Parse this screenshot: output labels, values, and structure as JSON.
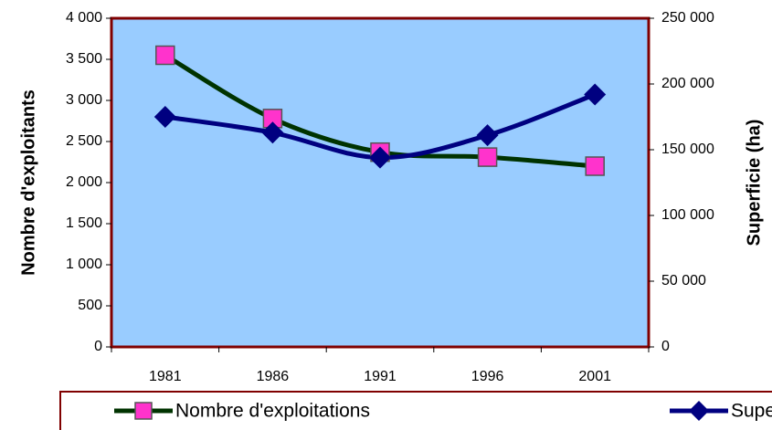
{
  "chart_data": {
    "type": "line",
    "categories": [
      "1981",
      "1986",
      "1991",
      "1996",
      "2001"
    ],
    "y_label": "Nombre d'exploitants",
    "y2_label": "Superficie (ha)",
    "series": [
      {
        "name": "Nombre d'exploitations",
        "color": "#003300",
        "marker": "square",
        "marker_color": "#ff33cc",
        "values": [
          3550,
          2780,
          2370,
          2310,
          2200
        ]
      },
      {
        "name": "Superficie",
        "color": "#000080",
        "marker": "diamond",
        "marker_color": "#000080",
        "axis": "y2",
        "values": [
          175000,
          163000,
          144000,
          161000,
          192000
        ]
      }
    ],
    "ylim": [
      0,
      4000
    ],
    "yticks": [
      0,
      500,
      {
        "value": 1000,
        "label": "1 000"
      },
      {
        "value": 1500,
        "label": "1 500"
      },
      {
        "value": 2000,
        "label": "2 000"
      },
      {
        "value": 2500,
        "label": "2 500"
      },
      {
        "value": 3000,
        "label": "3 000"
      },
      {
        "value": 3500,
        "label": "3 500"
      },
      {
        "value": 4000,
        "label": "4 000"
      }
    ],
    "y2lim": [
      0,
      250000
    ],
    "y2ticks": [
      0,
      {
        "value": 50000,
        "label": "50 000"
      },
      {
        "value": 100000,
        "label": "100 000"
      },
      {
        "value": 150000,
        "label": "150 000"
      },
      {
        "value": 200000,
        "label": "200 000"
      },
      {
        "value": 250000,
        "label": "250 000"
      }
    ],
    "plot_background": "#99ccff",
    "frame_color": "#800000",
    "legend": "bottom"
  }
}
